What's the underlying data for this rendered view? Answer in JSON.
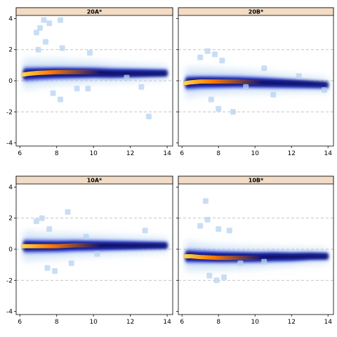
{
  "chart_data": [
    {
      "type": "scatter",
      "panel_title": "20A*",
      "xlim": [
        5.8,
        14.3
      ],
      "ylim": [
        -4.2,
        4.2
      ],
      "x_ticks": [
        6,
        8,
        10,
        12,
        14
      ],
      "y_ticks": [
        -4,
        -2,
        0,
        2,
        4
      ],
      "reference_lines_y": [
        -2,
        0,
        2
      ],
      "trend": {
        "x": [
          6.2,
          6.5,
          7,
          8,
          9,
          10,
          11,
          12,
          13,
          14
        ],
        "y": [
          0.4,
          0.45,
          0.5,
          0.55,
          0.55,
          0.55,
          0.5,
          0.5,
          0.5,
          0.5
        ]
      },
      "outliers": [
        {
          "x": 6.9,
          "y": 3.1
        },
        {
          "x": 7.1,
          "y": 3.4
        },
        {
          "x": 7.3,
          "y": 3.9
        },
        {
          "x": 7.6,
          "y": 3.7
        },
        {
          "x": 8.2,
          "y": 3.9
        },
        {
          "x": 7.4,
          "y": 2.5
        },
        {
          "x": 7.0,
          "y": 2.0
        },
        {
          "x": 8.3,
          "y": 2.1
        },
        {
          "x": 9.8,
          "y": 1.8
        },
        {
          "x": 7.8,
          "y": -0.8
        },
        {
          "x": 8.2,
          "y": -1.2
        },
        {
          "x": 9.1,
          "y": -0.5
        },
        {
          "x": 9.7,
          "y": -0.5
        },
        {
          "x": 11.8,
          "y": 0.2
        },
        {
          "x": 12.6,
          "y": -0.4
        },
        {
          "x": 13.0,
          "y": -2.3
        }
      ]
    },
    {
      "type": "scatter",
      "panel_title": "20B*",
      "xlim": [
        5.8,
        14.3
      ],
      "ylim": [
        -4.2,
        4.2
      ],
      "x_ticks": [
        6,
        8,
        10,
        12,
        14
      ],
      "y_ticks": [
        -4,
        -2,
        0,
        2,
        4
      ],
      "reference_lines_y": [
        -2,
        0,
        2
      ],
      "trend": {
        "x": [
          6.2,
          6.5,
          7,
          8,
          9,
          10,
          11,
          12,
          13,
          14
        ],
        "y": [
          -0.15,
          -0.1,
          -0.05,
          -0.05,
          -0.05,
          -0.1,
          -0.15,
          -0.2,
          -0.25,
          -0.3
        ]
      },
      "outliers": [
        {
          "x": 7.0,
          "y": 1.5
        },
        {
          "x": 7.4,
          "y": 1.9
        },
        {
          "x": 7.8,
          "y": 1.7
        },
        {
          "x": 8.2,
          "y": 1.3
        },
        {
          "x": 10.5,
          "y": 0.8
        },
        {
          "x": 12.4,
          "y": 0.3
        },
        {
          "x": 7.6,
          "y": -1.2
        },
        {
          "x": 8.0,
          "y": -1.8
        },
        {
          "x": 8.8,
          "y": -2.0
        },
        {
          "x": 9.5,
          "y": -0.4
        },
        {
          "x": 11.0,
          "y": -0.9
        },
        {
          "x": 13.8,
          "y": -0.6
        }
      ]
    },
    {
      "type": "scatter",
      "panel_title": "10A*",
      "xlim": [
        5.8,
        14.3
      ],
      "ylim": [
        -4.2,
        4.2
      ],
      "x_ticks": [
        6,
        8,
        10,
        12,
        14
      ],
      "y_ticks": [
        -4,
        -2,
        0,
        2,
        4
      ],
      "reference_lines_y": [
        -2,
        0,
        2
      ],
      "trend": {
        "x": [
          6.2,
          6.5,
          7,
          8,
          9,
          10,
          11,
          12,
          13,
          14
        ],
        "y": [
          0.2,
          0.2,
          0.2,
          0.2,
          0.25,
          0.25,
          0.25,
          0.25,
          0.25,
          0.25
        ]
      },
      "outliers": [
        {
          "x": 6.9,
          "y": 1.8
        },
        {
          "x": 7.2,
          "y": 2.0
        },
        {
          "x": 8.6,
          "y": 2.4
        },
        {
          "x": 7.6,
          "y": 1.3
        },
        {
          "x": 9.6,
          "y": 0.8
        },
        {
          "x": 12.8,
          "y": 1.2
        },
        {
          "x": 7.5,
          "y": -1.2
        },
        {
          "x": 7.9,
          "y": -1.4
        },
        {
          "x": 8.8,
          "y": -0.9
        },
        {
          "x": 10.2,
          "y": -0.3
        }
      ]
    },
    {
      "type": "scatter",
      "panel_title": "10B*",
      "xlim": [
        5.8,
        14.3
      ],
      "ylim": [
        -4.2,
        4.2
      ],
      "x_ticks": [
        6,
        8,
        10,
        12,
        14
      ],
      "y_ticks": [
        -4,
        -2,
        0,
        2,
        4
      ],
      "reference_lines_y": [
        -2,
        0,
        2
      ],
      "trend": {
        "x": [
          6.2,
          6.5,
          7,
          8,
          9,
          10,
          11,
          12,
          13,
          14
        ],
        "y": [
          -0.45,
          -0.45,
          -0.5,
          -0.55,
          -0.55,
          -0.55,
          -0.5,
          -0.5,
          -0.45,
          -0.45
        ]
      },
      "outliers": [
        {
          "x": 7.3,
          "y": 3.1
        },
        {
          "x": 7.0,
          "y": 1.5
        },
        {
          "x": 7.4,
          "y": 1.9
        },
        {
          "x": 8.0,
          "y": 1.3
        },
        {
          "x": 8.6,
          "y": 1.2
        },
        {
          "x": 7.5,
          "y": -1.7
        },
        {
          "x": 7.9,
          "y": -2.0
        },
        {
          "x": 8.3,
          "y": -1.8
        },
        {
          "x": 9.2,
          "y": -0.9
        },
        {
          "x": 10.5,
          "y": -0.8
        }
      ]
    }
  ],
  "colors": {
    "strip_fill": "#f2dcc6",
    "axis": "#000000",
    "reference_line": "#b0b0b0",
    "outlier": "#b7d3f0",
    "density_low": "#2b3fe0",
    "density_mid": "#08106f",
    "density_core": "#ff7a00",
    "density_peak": "#ffd24a"
  }
}
